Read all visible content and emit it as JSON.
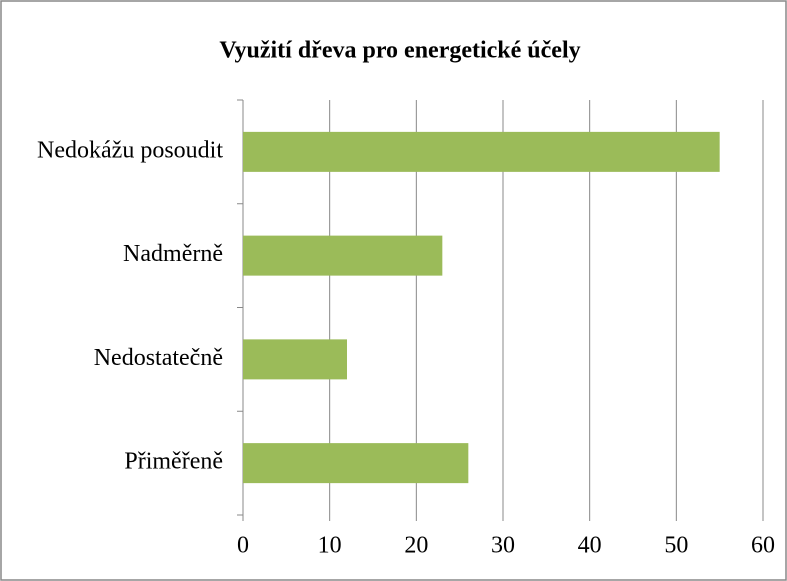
{
  "chart_data": {
    "type": "bar",
    "orientation": "horizontal",
    "title": "Využití dřeva pro energetické účely",
    "categories": [
      "Nedokážu posoudit",
      "Nadměrně",
      "Nedostatečně",
      "Přiměřeně"
    ],
    "values": [
      55,
      23,
      12,
      26
    ],
    "color": "#9bbb59",
    "xlim": [
      0,
      60
    ],
    "xticks": [
      0,
      10,
      20,
      30,
      40,
      50,
      60
    ],
    "grid": true
  }
}
